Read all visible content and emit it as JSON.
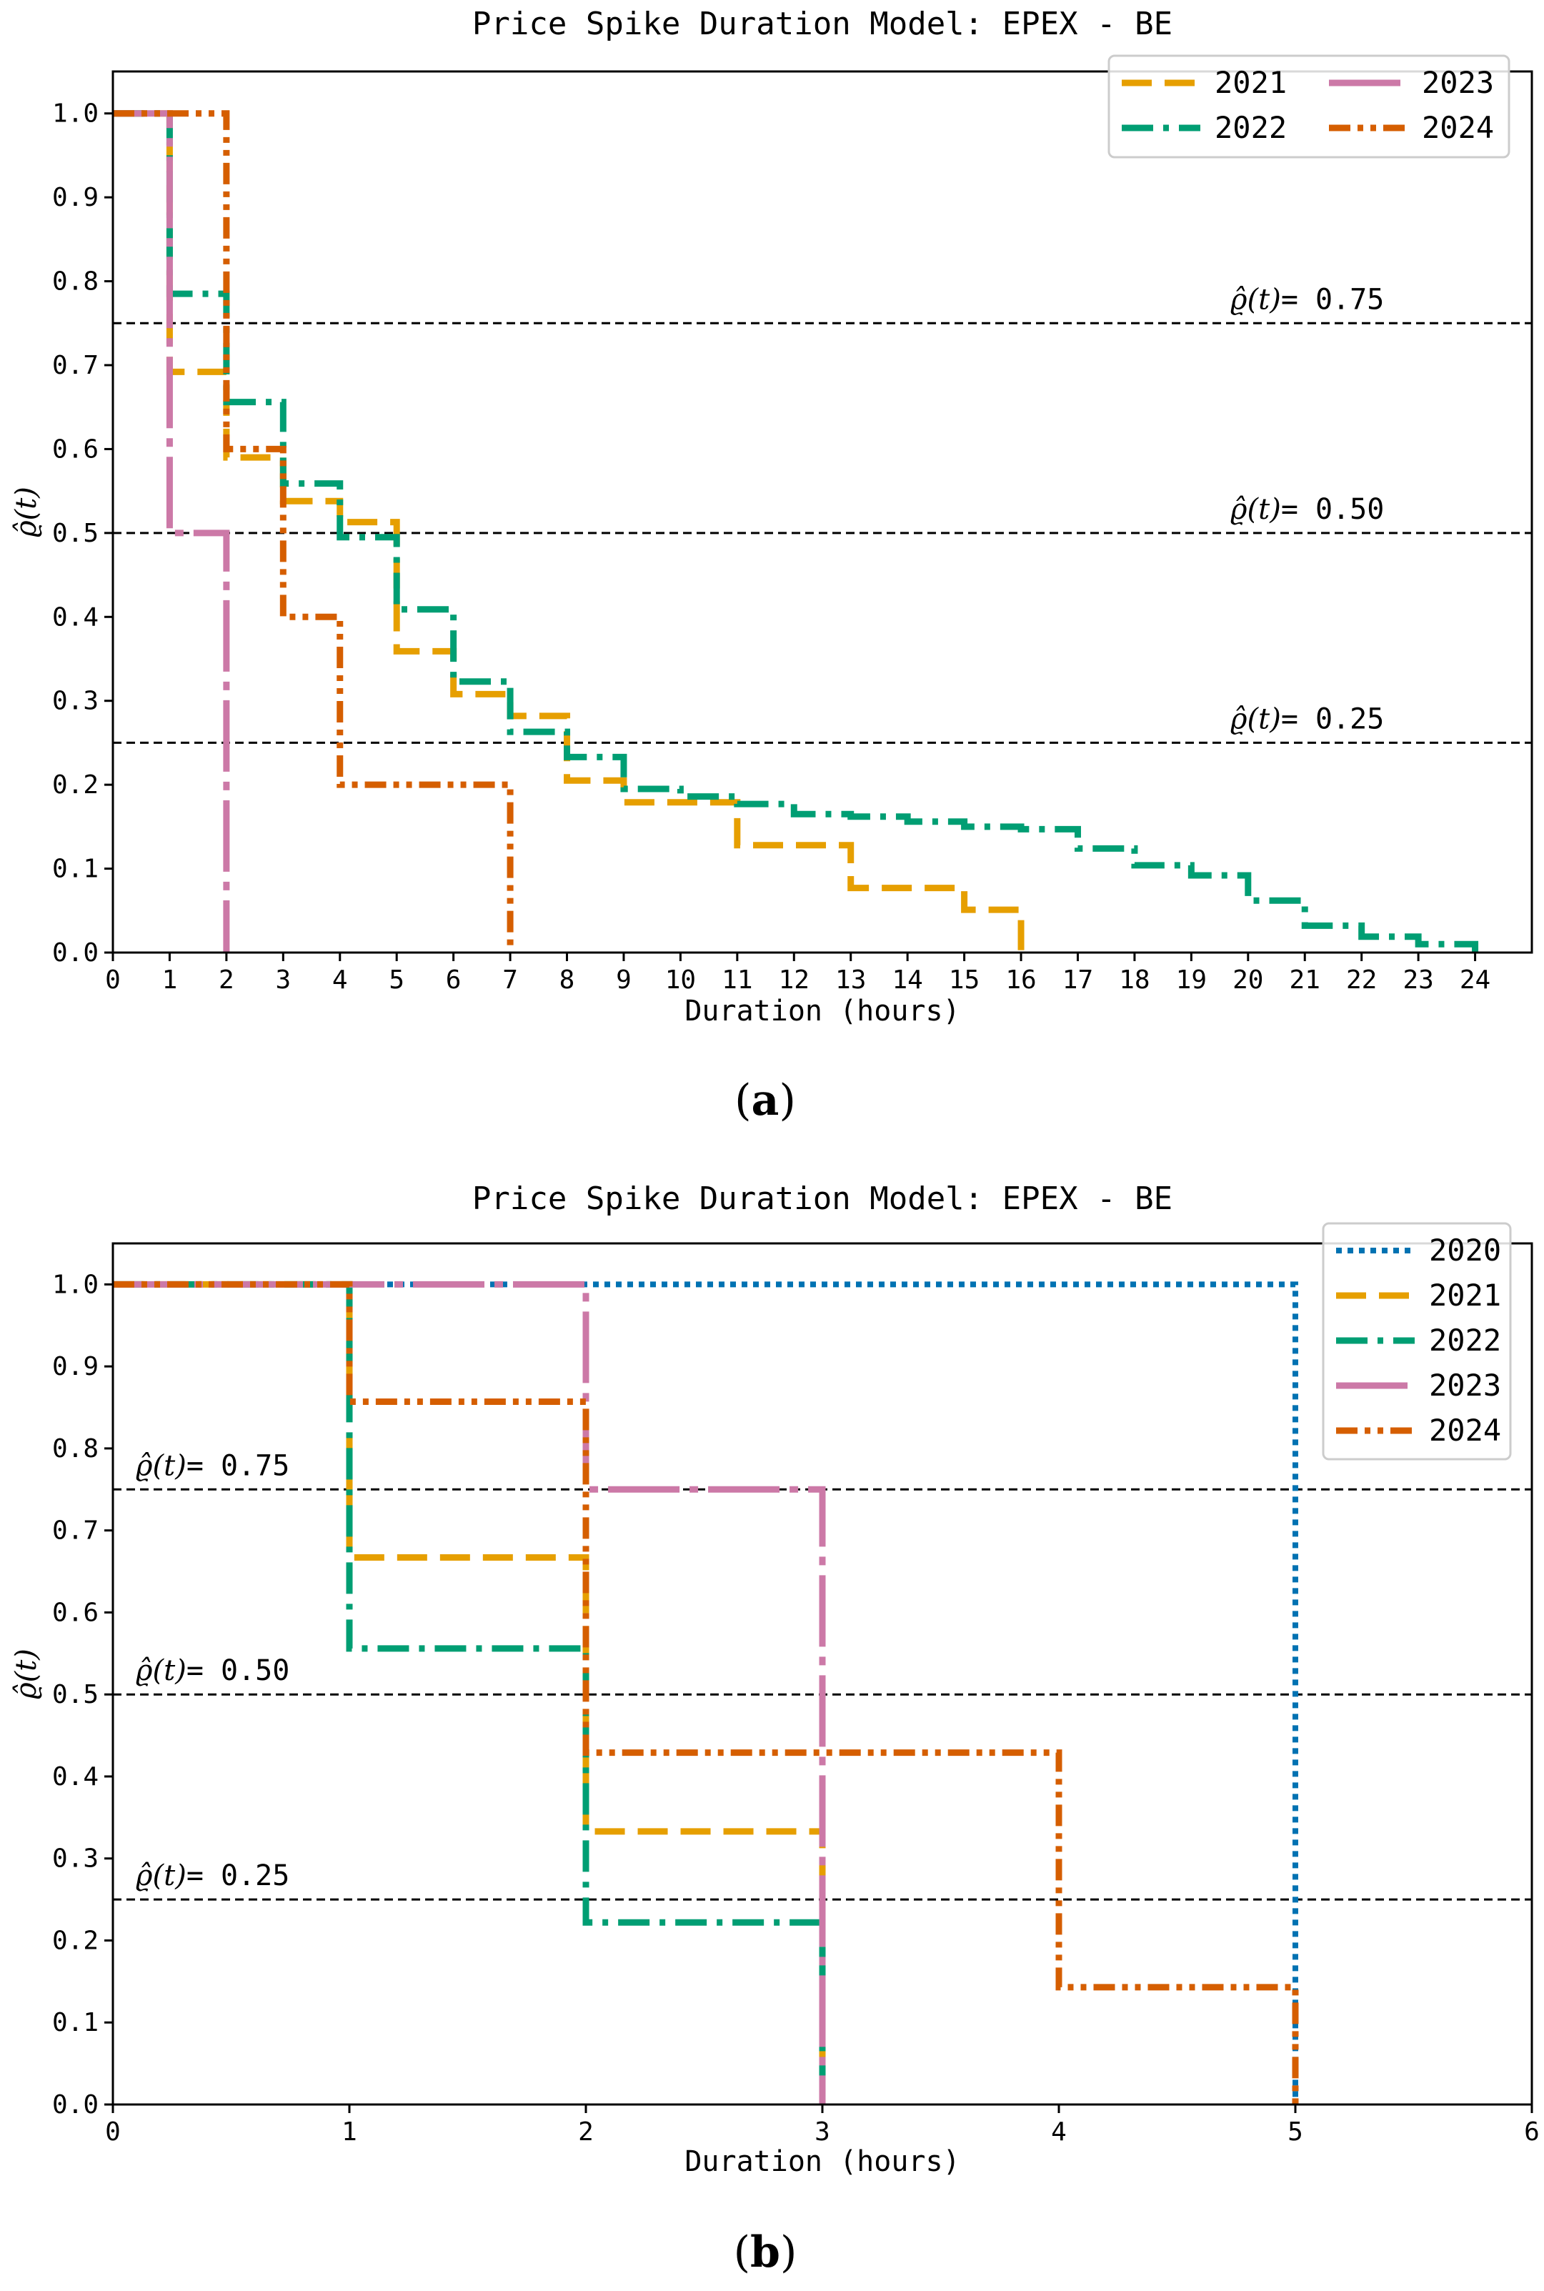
{
  "chart_data": [
    {
      "type": "line",
      "step": true,
      "panel_label": "(a)",
      "title": "Price Spike Duration Model: EPEX - BE",
      "xlabel": "Duration (hours)",
      "ylabel": "ϱ̂(t)",
      "xlim": [
        0,
        25
      ],
      "ylim": [
        0,
        1.05
      ],
      "xticks": [
        0,
        1,
        2,
        3,
        4,
        5,
        6,
        7,
        8,
        9,
        10,
        11,
        12,
        13,
        14,
        15,
        16,
        17,
        18,
        19,
        20,
        21,
        22,
        23,
        24
      ],
      "yticks": [
        0.0,
        0.1,
        0.2,
        0.3,
        0.4,
        0.5,
        0.6,
        0.7,
        0.8,
        0.9,
        1.0
      ],
      "xtick_labels": [
        "0",
        "1",
        "2",
        "3",
        "4",
        "5",
        "6",
        "7",
        "8",
        "9",
        "10",
        "11",
        "12",
        "13",
        "14",
        "15",
        "16",
        "17",
        "18",
        "19",
        "20",
        "21",
        "22",
        "23",
        "24"
      ],
      "ytick_labels": [
        "0.0",
        "0.1",
        "0.2",
        "0.3",
        "0.4",
        "0.5",
        "0.6",
        "0.7",
        "0.8",
        "0.9",
        "1.0"
      ],
      "legend_position": "top-right",
      "legend_columns": 2,
      "legend_order": [
        "2021",
        "2023",
        "2022",
        "2024"
      ],
      "reference_lines": [
        {
          "y": 0.75,
          "label": "ϱ̂(t)= 0.75",
          "label_side": "right"
        },
        {
          "y": 0.5,
          "label": "ϱ̂(t)= 0.50",
          "label_side": "right"
        },
        {
          "y": 0.25,
          "label": "ϱ̂(t)= 0.25",
          "label_side": "right"
        }
      ],
      "series": [
        {
          "name": "2021",
          "color": "#E69F00",
          "style": "dashed",
          "x": [
            0,
            1,
            2,
            3,
            4,
            5,
            6,
            7,
            8,
            9,
            11,
            13,
            15,
            16
          ],
          "y": [
            1.0,
            0.692,
            0.59,
            0.538,
            0.513,
            0.359,
            0.308,
            0.282,
            0.205,
            0.179,
            0.128,
            0.077,
            0.051,
            0.0
          ]
        },
        {
          "name": "2022",
          "color": "#009E73",
          "style": "dashdot",
          "x": [
            0,
            1,
            2,
            3,
            4,
            5,
            6,
            7,
            8,
            9,
            10,
            11,
            12,
            13,
            14,
            15,
            16,
            17,
            18,
            19,
            20,
            21,
            22,
            23,
            24
          ],
          "y": [
            1.0,
            0.785,
            0.656,
            0.559,
            0.495,
            0.409,
            0.323,
            0.263,
            0.233,
            0.195,
            0.186,
            0.177,
            0.165,
            0.162,
            0.156,
            0.15,
            0.147,
            0.124,
            0.104,
            0.092,
            0.062,
            0.032,
            0.019,
            0.01,
            0.0
          ]
        },
        {
          "name": "2023",
          "color": "#CC79A7",
          "style": "longdash",
          "x": [
            0,
            1,
            2
          ],
          "y": [
            1.0,
            0.5,
            0.0
          ]
        },
        {
          "name": "2024",
          "color": "#D55E00",
          "style": "dashdotdot",
          "x": [
            0,
            2,
            3,
            4,
            7
          ],
          "y": [
            1.0,
            0.6,
            0.4,
            0.2,
            0.0
          ]
        }
      ]
    },
    {
      "type": "line",
      "step": true,
      "panel_label": "(b)",
      "title": "Price Spike Duration Model: EPEX - BE",
      "xlabel": "Duration (hours)",
      "ylabel": "ϱ̂(t)",
      "xlim": [
        0,
        6
      ],
      "ylim": [
        0,
        1.05
      ],
      "xticks": [
        0,
        1,
        2,
        3,
        4,
        5,
        6
      ],
      "yticks": [
        0.0,
        0.1,
        0.2,
        0.3,
        0.4,
        0.5,
        0.6,
        0.7,
        0.8,
        0.9,
        1.0
      ],
      "xtick_labels": [
        "0",
        "1",
        "2",
        "3",
        "4",
        "5",
        "6"
      ],
      "ytick_labels": [
        "0.0",
        "0.1",
        "0.2",
        "0.3",
        "0.4",
        "0.5",
        "0.6",
        "0.7",
        "0.8",
        "0.9",
        "1.0"
      ],
      "legend_position": "top-right",
      "legend_columns": 1,
      "legend_order": [
        "2020",
        "2021",
        "2022",
        "2023",
        "2024"
      ],
      "reference_lines": [
        {
          "y": 0.75,
          "label": "ϱ̂(t)= 0.75",
          "label_side": "left"
        },
        {
          "y": 0.5,
          "label": "ϱ̂(t)= 0.50",
          "label_side": "left"
        },
        {
          "y": 0.25,
          "label": "ϱ̂(t)= 0.25",
          "label_side": "left"
        }
      ],
      "series": [
        {
          "name": "2020",
          "color": "#0072B2",
          "style": "dotted",
          "x": [
            0,
            5
          ],
          "y": [
            1.0,
            0.0
          ]
        },
        {
          "name": "2021",
          "color": "#E69F00",
          "style": "dashed",
          "x": [
            0,
            1,
            2,
            3
          ],
          "y": [
            1.0,
            0.667,
            0.333,
            0.0
          ]
        },
        {
          "name": "2022",
          "color": "#009E73",
          "style": "dashdot",
          "x": [
            0,
            1,
            2,
            3
          ],
          "y": [
            1.0,
            0.556,
            0.222,
            0.0
          ]
        },
        {
          "name": "2023",
          "color": "#CC79A7",
          "style": "longdash",
          "x": [
            0,
            2,
            3
          ],
          "y": [
            1.0,
            0.75,
            0.0
          ]
        },
        {
          "name": "2024",
          "color": "#D55E00",
          "style": "dashdotdot",
          "x": [
            0,
            1,
            2,
            4,
            5
          ],
          "y": [
            1.0,
            0.857,
            0.429,
            0.143,
            0.0
          ]
        }
      ]
    }
  ]
}
